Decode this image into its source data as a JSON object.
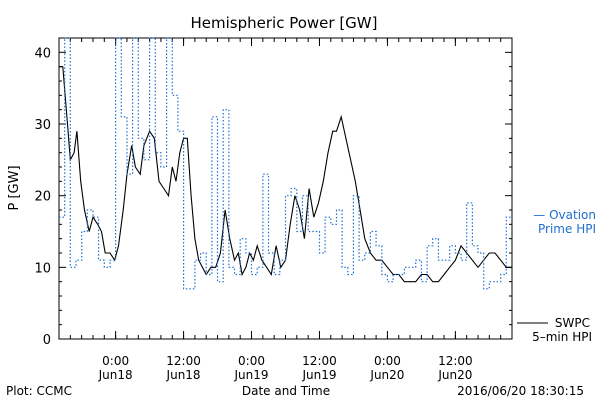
{
  "chart_data": {
    "type": "line",
    "title": "Hemispheric Power [GW]",
    "xlabel": "Date and Time",
    "ylabel": "P [GW]",
    "ylim": [
      0,
      42
    ],
    "yticks": [
      0,
      10,
      20,
      30,
      40
    ],
    "xlim": [
      "2016-06-17 14:00",
      "2016-06-20 22:00"
    ],
    "xticks": [
      {
        "t": "2016-06-18 00:00",
        "top": "0:00",
        "bottom": "Jun18"
      },
      {
        "t": "2016-06-18 12:00",
        "top": "12:00",
        "bottom": "Jun18"
      },
      {
        "t": "2016-06-19 00:00",
        "top": "0:00",
        "bottom": "Jun19"
      },
      {
        "t": "2016-06-19 12:00",
        "top": "12:00",
        "bottom": "Jun19"
      },
      {
        "t": "2016-06-20 00:00",
        "top": "0:00",
        "bottom": "Jun20"
      },
      {
        "t": "2016-06-20 12:00",
        "top": "12:00",
        "bottom": "Jun20"
      }
    ],
    "series": [
      {
        "name": "SWPC 5-min HPI",
        "color": "#000000",
        "style": "solid",
        "x": [
          "2016-06-17 14:00",
          "2016-06-17 14:40",
          "2016-06-17 15:30",
          "2016-06-17 16:00",
          "2016-06-17 16:40",
          "2016-06-17 17:10",
          "2016-06-17 17:50",
          "2016-06-17 18:30",
          "2016-06-17 19:20",
          "2016-06-17 20:00",
          "2016-06-17 20:50",
          "2016-06-17 21:30",
          "2016-06-17 22:10",
          "2016-06-17 23:00",
          "2016-06-17 23:50",
          "2016-06-18 00:30",
          "2016-06-18 01:20",
          "2016-06-18 02:00",
          "2016-06-18 02:50",
          "2016-06-18 03:30",
          "2016-06-18 04:20",
          "2016-06-18 05:00",
          "2016-06-18 06:00",
          "2016-06-18 06:50",
          "2016-06-18 07:40",
          "2016-06-18 08:30",
          "2016-06-18 09:20",
          "2016-06-18 10:00",
          "2016-06-18 10:40",
          "2016-06-18 11:20",
          "2016-06-18 12:00",
          "2016-06-18 12:40",
          "2016-06-18 13:20",
          "2016-06-18 14:00",
          "2016-06-18 14:40",
          "2016-06-18 15:20",
          "2016-06-18 16:00",
          "2016-06-18 16:50",
          "2016-06-18 17:40",
          "2016-06-18 18:30",
          "2016-06-18 19:20",
          "2016-06-18 20:10",
          "2016-06-18 21:00",
          "2016-06-18 21:40",
          "2016-06-18 22:20",
          "2016-06-18 23:00",
          "2016-06-18 23:40",
          "2016-06-19 00:20",
          "2016-06-19 01:00",
          "2016-06-19 01:50",
          "2016-06-19 02:40",
          "2016-06-19 03:30",
          "2016-06-19 04:20",
          "2016-06-19 05:10",
          "2016-06-19 06:00",
          "2016-06-19 06:50",
          "2016-06-19 07:40",
          "2016-06-19 08:30",
          "2016-06-19 09:20",
          "2016-06-19 10:10",
          "2016-06-19 11:00",
          "2016-06-19 11:50",
          "2016-06-19 12:40",
          "2016-06-19 13:30",
          "2016-06-19 14:20",
          "2016-06-19 15:00",
          "2016-06-19 15:50",
          "2016-06-19 16:40",
          "2016-06-19 17:30",
          "2016-06-19 18:20",
          "2016-06-19 19:10",
          "2016-06-19 20:00",
          "2016-06-19 21:00",
          "2016-06-19 22:00",
          "2016-06-19 23:00",
          "2016-06-20 00:00",
          "2016-06-20 01:00",
          "2016-06-20 02:00",
          "2016-06-20 03:00",
          "2016-06-20 04:00",
          "2016-06-20 05:00",
          "2016-06-20 06:00",
          "2016-06-20 07:00",
          "2016-06-20 08:00",
          "2016-06-20 09:00",
          "2016-06-20 10:00",
          "2016-06-20 11:00",
          "2016-06-20 12:00",
          "2016-06-20 13:00",
          "2016-06-20 14:00",
          "2016-06-20 15:00",
          "2016-06-20 16:00",
          "2016-06-20 17:00",
          "2016-06-20 18:00",
          "2016-06-20 19:00",
          "2016-06-20 20:00",
          "2016-06-20 21:00",
          "2016-06-20 22:00"
        ],
        "values": [
          38,
          38,
          30,
          25,
          26,
          29,
          22,
          18,
          15,
          17,
          16,
          15,
          12,
          12,
          11,
          13,
          18,
          23,
          27,
          24,
          23,
          27,
          29,
          28,
          22,
          21,
          20,
          24,
          22,
          26,
          28,
          28,
          20,
          14,
          11,
          10,
          9,
          10,
          10,
          12,
          18,
          14,
          11,
          12,
          9,
          10,
          12,
          11,
          13,
          11,
          10,
          9,
          13,
          10,
          11,
          16,
          20,
          18,
          14,
          21,
          17,
          19,
          22,
          26,
          29,
          29,
          31,
          28,
          25,
          22,
          18,
          14,
          12,
          11,
          11,
          10,
          9,
          9,
          8,
          8,
          8,
          9,
          9,
          8,
          8,
          9,
          10,
          11,
          13,
          12,
          11,
          10,
          11,
          12,
          12,
          11,
          10,
          10
        ]
      },
      {
        "name": "Ovation Prime HPI",
        "color": "#1f6fd1",
        "style": "dotted",
        "x": [
          "2016-06-17 14:00",
          "2016-06-17 15:00",
          "2016-06-17 16:00",
          "2016-06-17 17:00",
          "2016-06-17 18:00",
          "2016-06-17 19:00",
          "2016-06-17 20:00",
          "2016-06-17 21:00",
          "2016-06-17 22:00",
          "2016-06-17 23:00",
          "2016-06-18 00:00",
          "2016-06-18 01:00",
          "2016-06-18 02:00",
          "2016-06-18 03:00",
          "2016-06-18 04:00",
          "2016-06-18 05:00",
          "2016-06-18 06:00",
          "2016-06-18 07:00",
          "2016-06-18 08:00",
          "2016-06-18 09:00",
          "2016-06-18 10:00",
          "2016-06-18 11:00",
          "2016-06-18 12:00",
          "2016-06-18 13:00",
          "2016-06-18 14:00",
          "2016-06-18 15:00",
          "2016-06-18 16:00",
          "2016-06-18 17:00",
          "2016-06-18 18:00",
          "2016-06-18 19:00",
          "2016-06-18 20:00",
          "2016-06-18 21:00",
          "2016-06-18 22:00",
          "2016-06-18 23:00",
          "2016-06-19 00:00",
          "2016-06-19 01:00",
          "2016-06-19 02:00",
          "2016-06-19 03:00",
          "2016-06-19 04:00",
          "2016-06-19 05:00",
          "2016-06-19 06:00",
          "2016-06-19 07:00",
          "2016-06-19 08:00",
          "2016-06-19 09:00",
          "2016-06-19 10:00",
          "2016-06-19 11:00",
          "2016-06-19 12:00",
          "2016-06-19 13:00",
          "2016-06-19 14:00",
          "2016-06-19 15:00",
          "2016-06-19 16:00",
          "2016-06-19 17:00",
          "2016-06-19 18:00",
          "2016-06-19 19:00",
          "2016-06-19 20:00",
          "2016-06-19 21:00",
          "2016-06-19 22:00",
          "2016-06-19 23:00",
          "2016-06-20 00:00",
          "2016-06-20 01:00",
          "2016-06-20 02:00",
          "2016-06-20 03:00",
          "2016-06-20 04:00",
          "2016-06-20 05:00",
          "2016-06-20 06:00",
          "2016-06-20 07:00",
          "2016-06-20 08:00",
          "2016-06-20 09:00",
          "2016-06-20 10:00",
          "2016-06-20 11:00",
          "2016-06-20 12:00",
          "2016-06-20 13:00",
          "2016-06-20 14:00",
          "2016-06-20 15:00",
          "2016-06-20 16:00",
          "2016-06-20 17:00",
          "2016-06-20 18:00",
          "2016-06-20 19:00",
          "2016-06-20 20:00",
          "2016-06-20 21:00",
          "2016-06-20 22:00"
        ],
        "values": [
          17,
          42,
          10,
          11,
          15,
          18,
          17,
          11,
          10,
          11,
          42,
          31,
          23,
          42,
          28,
          25,
          42,
          26,
          24,
          42,
          34,
          29,
          7,
          7,
          11,
          12,
          9,
          31,
          8,
          32,
          10,
          9,
          14,
          12,
          9,
          10,
          23,
          12,
          9,
          11,
          20,
          21,
          15,
          20,
          15,
          15,
          12,
          17,
          16,
          18,
          10,
          9,
          20,
          11,
          12,
          15,
          13,
          9,
          8,
          9,
          9,
          10,
          10,
          11,
          8,
          13,
          14,
          11,
          11,
          13,
          12,
          11,
          19,
          13,
          12,
          7,
          8,
          8,
          9,
          17,
          17
        ]
      }
    ],
    "legend": {
      "ovation_line1": "— Ovation",
      "ovation_line2": "Prime HPI",
      "swpc_line1": "SWPC",
      "swpc_line2": "5–min HPI"
    },
    "grid": false
  },
  "footer": {
    "left": "Plot: CCMC",
    "center": "Date and Time",
    "right": "2016/06/20 18:30:15"
  }
}
